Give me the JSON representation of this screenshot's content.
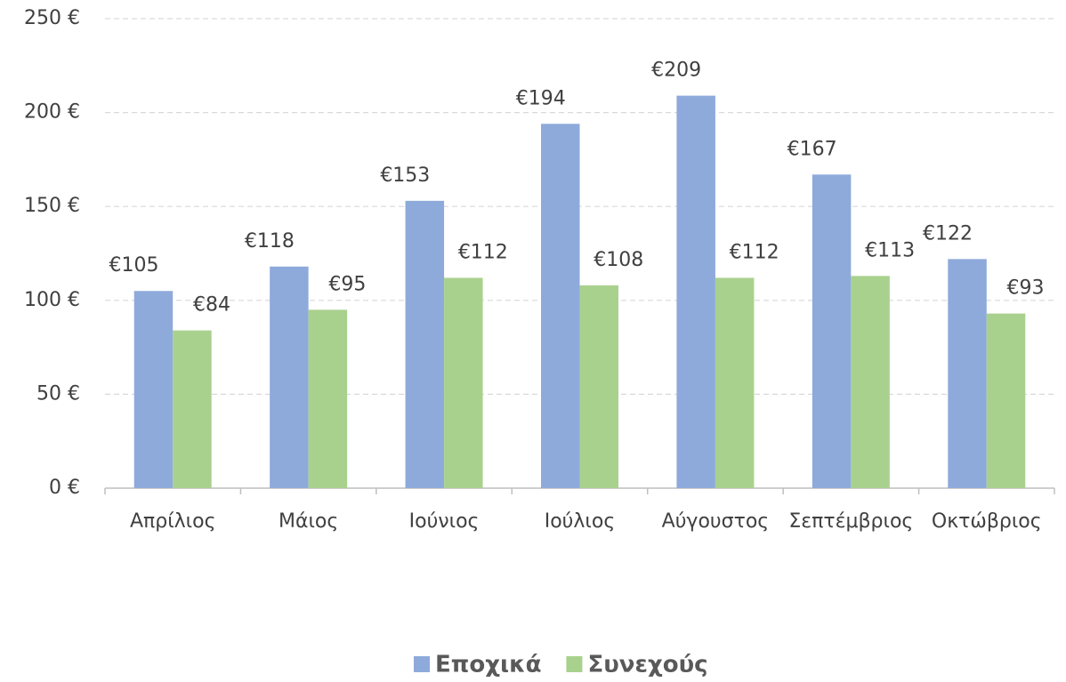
{
  "chart_data": {
    "type": "bar",
    "categories": [
      "Απρίλιος",
      "Μάιος",
      "Ιούνιος",
      "Ιούλιος",
      "Αύγουστος",
      "Σεπτέμβριος",
      "Οκτώβριος"
    ],
    "series": [
      {
        "name": "Εποχικά",
        "color": "#8eaadb",
        "values": [
          105,
          118,
          153,
          194,
          209,
          167,
          122
        ],
        "value_labels": [
          "€105",
          "€118",
          "€153",
          "€194",
          "€209",
          "€167",
          "€122"
        ]
      },
      {
        "name": "Συνεχούς",
        "color": "#a9d18e",
        "values": [
          84,
          95,
          112,
          108,
          112,
          113,
          93
        ],
        "value_labels": [
          "€84",
          "€95",
          "€112",
          "€108",
          "€112",
          "€113",
          "€93"
        ]
      }
    ],
    "ylim": [
      0,
      250
    ],
    "yticks": [
      {
        "value": 0,
        "label": "0 €"
      },
      {
        "value": 50,
        "label": "50 €"
      },
      {
        "value": 100,
        "label": "100 €"
      },
      {
        "value": 150,
        "label": "150 €"
      },
      {
        "value": 200,
        "label": "200 €"
      },
      {
        "value": 250,
        "label": "250 €"
      }
    ],
    "grid": true,
    "legend": "bottom"
  }
}
